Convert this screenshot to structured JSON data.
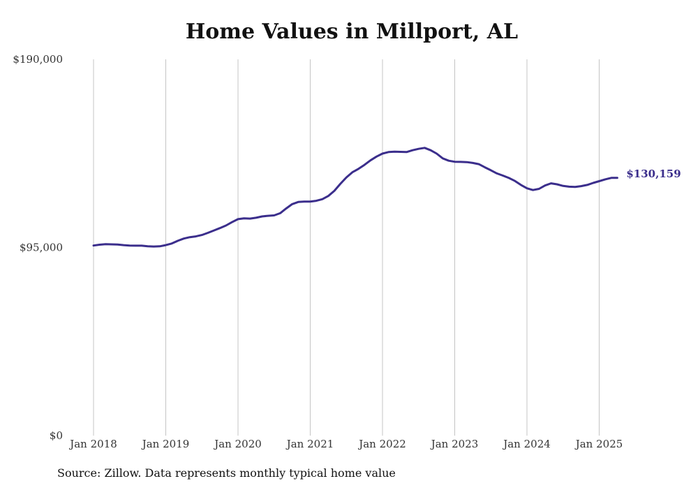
{
  "chart_data": {
    "type": "line",
    "title": "Home Values in Millport, AL",
    "source": "Source: Zillow. Data represents monthly typical home value",
    "ylim": [
      0,
      190000
    ],
    "yticks": [
      {
        "value": 0,
        "label": "$0"
      },
      {
        "value": 95000,
        "label": "$95,000"
      },
      {
        "value": 190000,
        "label": "$190,000"
      }
    ],
    "xticks": [
      "Jan 2018",
      "Jan 2019",
      "Jan 2020",
      "Jan 2021",
      "Jan 2022",
      "Jan 2023",
      "Jan 2024",
      "Jan 2025"
    ],
    "grid": "vertical",
    "line_color": "#3b2e8c",
    "end_label": "$130,159",
    "start": "2018-01",
    "values": [
      96000,
      96400,
      96700,
      96600,
      96500,
      96200,
      96000,
      95900,
      95900,
      95600,
      95500,
      95600,
      96200,
      97000,
      98400,
      99500,
      100200,
      100600,
      101300,
      102400,
      103600,
      104800,
      106100,
      107800,
      109300,
      109700,
      109600,
      110000,
      110700,
      111000,
      111200,
      112300,
      114700,
      116900,
      118000,
      118200,
      118200,
      118600,
      119400,
      121000,
      123600,
      127100,
      130400,
      133000,
      134700,
      136700,
      139000,
      140900,
      142400,
      143200,
      143400,
      143300,
      143200,
      144100,
      144800,
      145300,
      144100,
      142400,
      140000,
      138800,
      138300,
      138200,
      138100,
      137700,
      137100,
      135500,
      134000,
      132400,
      131300,
      130100,
      128600,
      126600,
      124900,
      124000,
      124600,
      126300,
      127400,
      126900,
      126100,
      125700,
      125600,
      126000,
      126600,
      127600,
      128500,
      129400,
      130159,
      130159
    ]
  }
}
